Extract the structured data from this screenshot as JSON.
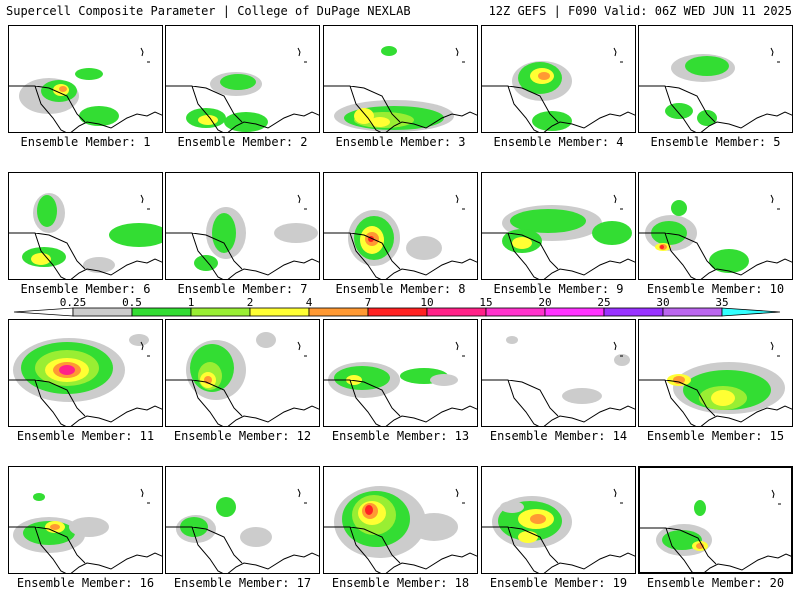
{
  "header": {
    "left": "Supercell Composite Parameter | College of DuPage NEXLAB",
    "right": "12Z GEFS | F090 Valid: 06Z WED JUN 11 2025"
  },
  "label_prefix": "Ensemble Member: ",
  "selected_member": 20,
  "members": [
    1,
    2,
    3,
    4,
    5,
    6,
    7,
    8,
    9,
    10,
    11,
    12,
    13,
    14,
    15,
    16,
    17,
    18,
    19,
    20
  ],
  "colorbar": {
    "ticks": [
      "0.25",
      "0.5",
      "1",
      "2",
      "4",
      "7",
      "10",
      "15",
      "20",
      "25",
      "30",
      "35"
    ],
    "colors": [
      "#cccccc",
      "#33dd33",
      "#99ee33",
      "#ffff33",
      "#ff9933",
      "#ff2222",
      "#ff2288",
      "#ff33cc",
      "#ff33ff",
      "#9933ff",
      "#bb66ee",
      "#33ffff"
    ]
  }
}
